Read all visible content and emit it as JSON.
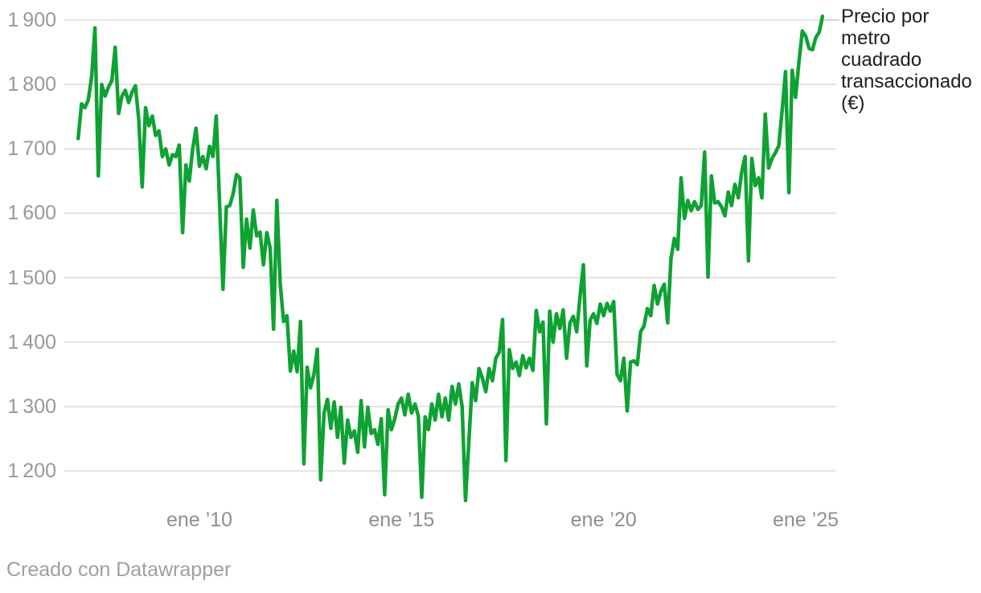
{
  "chart_data": {
    "type": "line",
    "title": "",
    "annotation": {
      "text": "Precio por metro cuadrado transaccionado (€)",
      "lines": [
        "Precio por",
        "metro",
        "cuadrado",
        "transaccionado",
        "(€)"
      ]
    },
    "footer": "Creado con Datawrapper",
    "x_axis": {
      "frequency": "monthly",
      "start_month": "2007-01",
      "end_month": "2025-06",
      "ticks": [
        {
          "label": "ene ’10",
          "month_index": 36
        },
        {
          "label": "ene ’15",
          "month_index": 96
        },
        {
          "label": "ene ’20",
          "month_index": 156
        },
        {
          "label": "ene ’25",
          "month_index": 216
        }
      ]
    },
    "y_axis": {
      "min": 1200,
      "max": 1900,
      "step": 100,
      "tick_values": [
        1900,
        1800,
        1700,
        1600,
        1500,
        1400,
        1300,
        1200
      ],
      "tick_labels": [
        "1 900",
        "1 800",
        "1 700",
        "1 600",
        "1 500",
        "1 400",
        "1 300",
        "1 200"
      ]
    },
    "grid": "horizontal-only",
    "legend_position": "annotation-top-right",
    "colors": {
      "line": "#0ea232",
      "grid": "#dcdcdc",
      "axis_text": "#979797",
      "annotation_text": "#1d1d1d",
      "footer_text": "#a0a0a0",
      "background": "#ffffff"
    },
    "series": [
      {
        "name": "Precio por metro cuadrado transaccionado (€)",
        "values": [
          1716,
          1770,
          1764,
          1776,
          1812,
          1888,
          1658,
          1800,
          1782,
          1796,
          1806,
          1858,
          1755,
          1782,
          1791,
          1772,
          1788,
          1798,
          1745,
          1641,
          1764,
          1736,
          1751,
          1721,
          1728,
          1688,
          1700,
          1675,
          1691,
          1688,
          1706,
          1570,
          1675,
          1650,
          1700,
          1732,
          1673,
          1688,
          1669,
          1704,
          1688,
          1751,
          1615,
          1482,
          1610,
          1612,
          1630,
          1660,
          1655,
          1516,
          1591,
          1546,
          1605,
          1565,
          1571,
          1520,
          1570,
          1546,
          1420,
          1620,
          1490,
          1432,
          1441,
          1355,
          1386,
          1354,
          1432,
          1211,
          1361,
          1329,
          1350,
          1389,
          1186,
          1290,
          1311,
          1266,
          1307,
          1252,
          1299,
          1212,
          1279,
          1252,
          1262,
          1229,
          1309,
          1237,
          1299,
          1258,
          1264,
          1241,
          1281,
          1163,
          1295,
          1264,
          1281,
          1304,
          1313,
          1287,
          1319,
          1290,
          1304,
          1285,
          1159,
          1284,
          1264,
          1304,
          1279,
          1319,
          1284,
          1313,
          1279,
          1331,
          1304,
          1335,
          1300,
          1154,
          1246,
          1337,
          1309,
          1359,
          1344,
          1323,
          1359,
          1340,
          1375,
          1384,
          1435,
          1216,
          1388,
          1359,
          1369,
          1348,
          1379,
          1360,
          1375,
          1356,
          1449,
          1416,
          1431,
          1273,
          1448,
          1400,
          1444,
          1421,
          1450,
          1375,
          1430,
          1440,
          1416,
          1470,
          1520,
          1363,
          1434,
          1444,
          1429,
          1459,
          1441,
          1460,
          1448,
          1463,
          1350,
          1340,
          1375,
          1293,
          1369,
          1371,
          1365,
          1416,
          1425,
          1452,
          1441,
          1488,
          1459,
          1479,
          1490,
          1430,
          1529,
          1561,
          1544,
          1655,
          1592,
          1620,
          1604,
          1618,
          1606,
          1612,
          1695,
          1501,
          1658,
          1616,
          1618,
          1610,
          1596,
          1633,
          1612,
          1645,
          1624,
          1664,
          1688,
          1526,
          1685,
          1643,
          1655,
          1624,
          1754,
          1670,
          1685,
          1694,
          1705,
          1760,
          1820,
          1632,
          1822,
          1780,
          1835,
          1883,
          1875,
          1856,
          1854,
          1873,
          1881,
          1906
        ]
      }
    ]
  }
}
